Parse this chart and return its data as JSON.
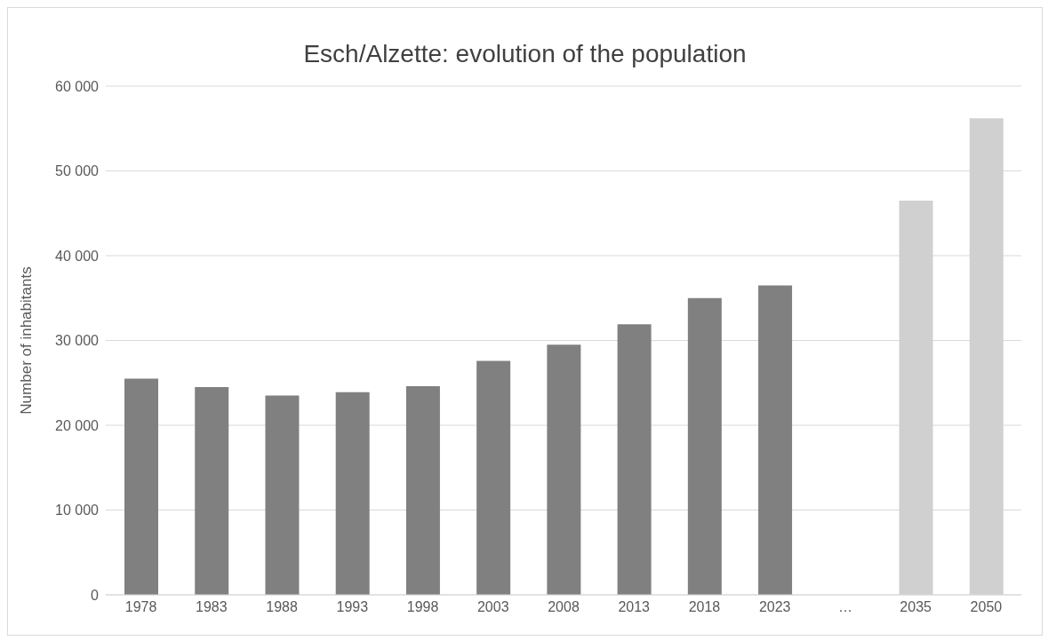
{
  "chart_data": {
    "type": "bar",
    "title": "Esch/Alzette: evolution of the population",
    "ylabel": "Number of inhabitants",
    "categories": [
      "1978",
      "1983",
      "1988",
      "1993",
      "1998",
      "2003",
      "2008",
      "2013",
      "2018",
      "2023",
      "…",
      "2035",
      "2050"
    ],
    "values": [
      25500,
      24500,
      23500,
      23900,
      24600,
      27600,
      29500,
      31900,
      35000,
      36500,
      null,
      46500,
      56200
    ],
    "colors": [
      "#808080",
      "#808080",
      "#808080",
      "#808080",
      "#808080",
      "#808080",
      "#808080",
      "#808080",
      "#808080",
      "#808080",
      "#808080",
      "#d0d0d0",
      "#d0d0d0"
    ],
    "ylim": [
      0,
      60000
    ],
    "yticks": [
      0,
      {
        "value": 10000,
        "label": "10 000"
      },
      {
        "value": 20000,
        "label": "20 000"
      },
      {
        "value": 30000,
        "label": "30 000"
      },
      {
        "value": 40000,
        "label": "40 000"
      },
      {
        "value": 50000,
        "label": "50 000"
      },
      {
        "value": 60000,
        "label": "60 000"
      }
    ],
    "grid": "y",
    "legend": false
  }
}
